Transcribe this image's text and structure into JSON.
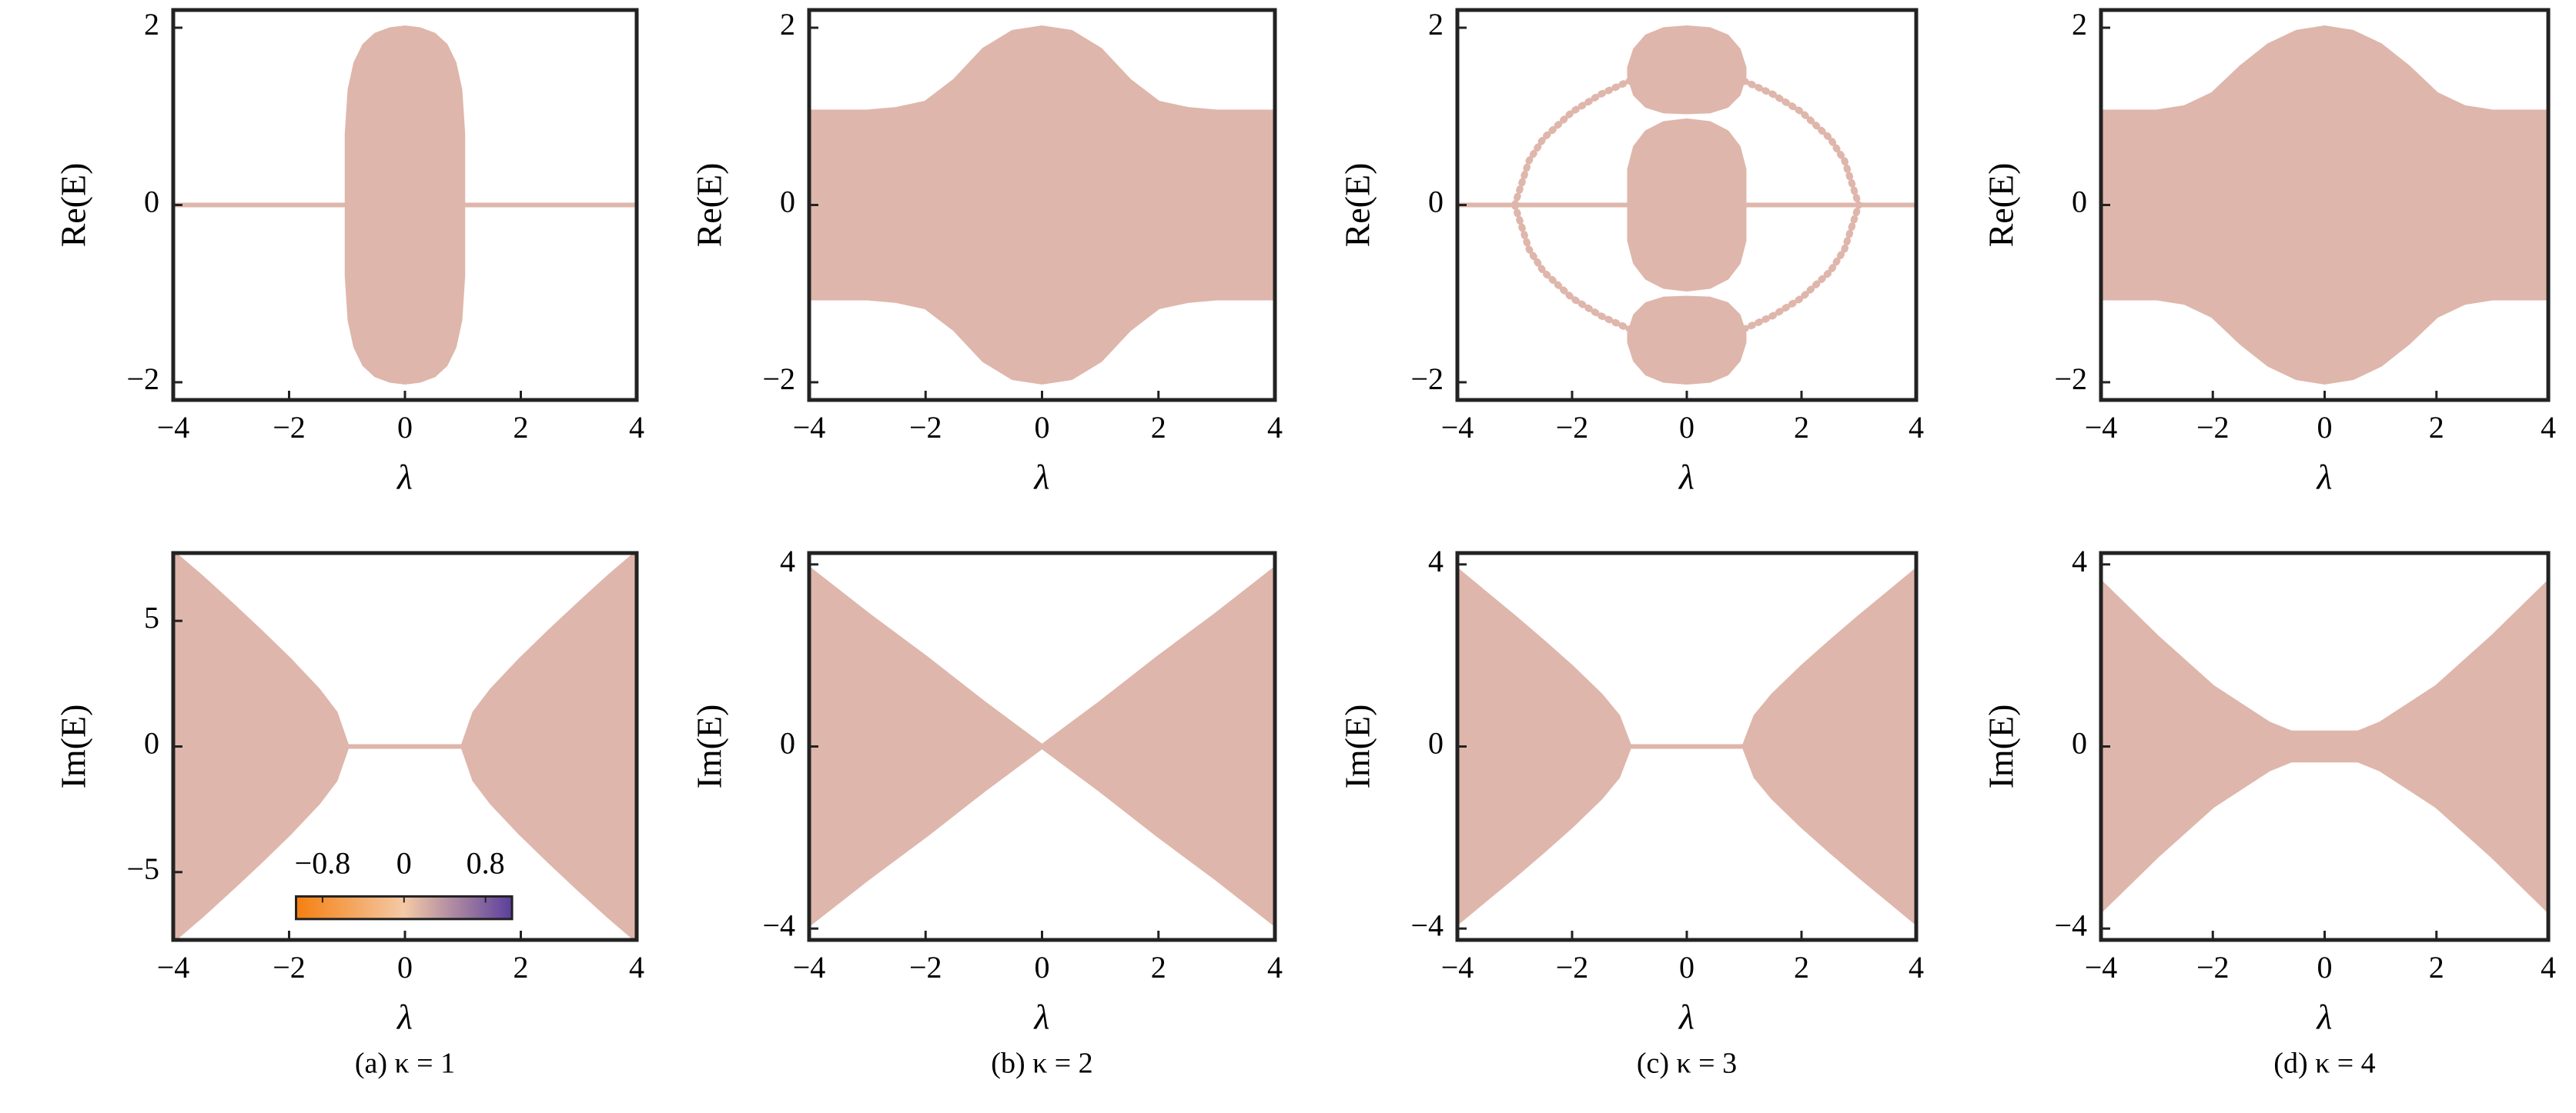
{
  "chart_data": [
    {
      "type": "band",
      "xlabel": "λ",
      "ylabel": "Re(E)",
      "color": "#dfb6ab",
      "xlim": [
        -4,
        4
      ],
      "ylim": [
        -2.2,
        2.2
      ],
      "xticks": [
        {
          "value": -4,
          "label": "−4"
        },
        {
          "value": -2,
          "label": "−2"
        },
        0,
        2,
        4
      ],
      "yticks": [
        {
          "value": -2,
          "label": "−2"
        },
        0,
        2
      ],
      "series": [
        {
          "x": [
            -4,
            4
          ],
          "upper": [
            0,
            0
          ],
          "lower": [
            0,
            0
          ]
        },
        {
          "x": [
            -1,
            -0.95,
            -0.85,
            -0.7,
            -0.5,
            -0.25,
            0,
            0.25,
            0.5,
            0.7,
            0.85,
            0.95,
            1
          ],
          "upper": [
            0.8,
            1.3,
            1.6,
            1.8,
            1.92,
            1.98,
            2,
            1.98,
            1.92,
            1.8,
            1.6,
            1.3,
            0.8
          ],
          "lower": [
            -0.8,
            -1.3,
            -1.6,
            -1.8,
            -1.92,
            -1.98,
            -2,
            -1.98,
            -1.92,
            -1.8,
            -1.6,
            -1.3,
            -0.8
          ]
        }
      ]
    },
    {
      "type": "band",
      "xlabel": "λ",
      "ylabel": "Re(E)",
      "color": "#dfb6ab",
      "xlim": [
        -4,
        4
      ],
      "ylim": [
        -2.2,
        2.2
      ],
      "xticks": [
        {
          "value": -4,
          "label": "−4"
        },
        {
          "value": -2,
          "label": "−2"
        },
        0,
        2,
        4
      ],
      "yticks": [
        {
          "value": -2,
          "label": "−2"
        },
        0,
        2
      ],
      "series": [
        {
          "x": [
            -4,
            -3,
            -2.5,
            -2,
            -1.5,
            -1,
            -0.5,
            0,
            0.5,
            1,
            1.5,
            2,
            2.5,
            3,
            4
          ],
          "upper": [
            1.05,
            1.05,
            1.08,
            1.15,
            1.4,
            1.75,
            1.95,
            2,
            1.95,
            1.75,
            1.4,
            1.15,
            1.08,
            1.05,
            1.05
          ],
          "lower": [
            -1.05,
            -1.05,
            -1.08,
            -1.15,
            -1.4,
            -1.75,
            -1.95,
            -2,
            -1.95,
            -1.75,
            -1.4,
            -1.15,
            -1.08,
            -1.05,
            -1.05
          ]
        }
      ]
    },
    {
      "type": "band",
      "xlabel": "λ",
      "ylabel": "Re(E)",
      "color": "#dfb6ab",
      "xlim": [
        -4,
        4
      ],
      "ylim": [
        -2.2,
        2.2
      ],
      "xticks": [
        {
          "value": -4,
          "label": "−4"
        },
        {
          "value": -2,
          "label": "−2"
        },
        0,
        2,
        4
      ],
      "yticks": [
        {
          "value": -2,
          "label": "−2"
        },
        0,
        2
      ],
      "series": [
        {
          "x": [
            -4,
            4
          ],
          "upper": [
            0,
            0
          ],
          "lower": [
            0,
            0
          ]
        },
        {
          "x": [
            -1,
            -0.9,
            -0.7,
            -0.4,
            0,
            0.4,
            0.7,
            0.9,
            1
          ],
          "upper": [
            0.4,
            0.65,
            0.82,
            0.92,
            0.95,
            0.92,
            0.82,
            0.65,
            0.4
          ],
          "lower": [
            -0.4,
            -0.65,
            -0.82,
            -0.92,
            -0.95,
            -0.92,
            -0.82,
            -0.65,
            -0.4
          ]
        },
        {
          "x": [
            -1,
            -0.9,
            -0.7,
            -0.4,
            0,
            0.4,
            0.7,
            0.9,
            1
          ],
          "upper": [
            1.55,
            1.75,
            1.9,
            1.98,
            2,
            1.98,
            1.9,
            1.75,
            1.55
          ],
          "lower": [
            1.45,
            1.25,
            1.12,
            1.06,
            1.05,
            1.06,
            1.12,
            1.25,
            1.45
          ]
        },
        {
          "x": [
            -1,
            -0.9,
            -0.7,
            -0.4,
            0,
            0.4,
            0.7,
            0.9,
            1
          ],
          "upper": [
            -1.45,
            -1.25,
            -1.12,
            -1.06,
            -1.05,
            -1.06,
            -1.12,
            -1.25,
            -1.45
          ],
          "lower": [
            -1.55,
            -1.75,
            -1.9,
            -1.98,
            -2,
            -1.98,
            -1.9,
            -1.75,
            -1.55
          ]
        },
        {
          "x": [
            -3,
            -2.75,
            -2.5,
            -2,
            -1.5,
            -1
          ],
          "filled": false,
          "upper": [
            0,
            0.5,
            0.75,
            1.05,
            1.25,
            1.4
          ],
          "lower": [
            0,
            -0.5,
            -0.75,
            -1.05,
            -1.25,
            -1.4
          ]
        },
        {
          "x": [
            1,
            1.5,
            2,
            2.5,
            2.75,
            3
          ],
          "filled": false,
          "upper": [
            1.4,
            1.25,
            1.05,
            0.75,
            0.5,
            0
          ],
          "lower": [
            -1.4,
            -1.25,
            -1.05,
            -0.75,
            -0.5,
            0
          ]
        }
      ]
    },
    {
      "type": "band",
      "xlabel": "λ",
      "ylabel": "Re(E)",
      "color": "#dfb6ab",
      "xlim": [
        -4,
        4
      ],
      "ylim": [
        -2.2,
        2.2
      ],
      "xticks": [
        {
          "value": -4,
          "label": "−4"
        },
        {
          "value": -2,
          "label": "−2"
        },
        0,
        2,
        4
      ],
      "yticks": [
        {
          "value": -2,
          "label": "−2"
        },
        0,
        2
      ],
      "series": [
        {
          "x": [
            -4,
            -3,
            -2.5,
            -2,
            -1.5,
            -1,
            -0.5,
            0,
            0.5,
            1,
            1.5,
            2,
            2.5,
            3,
            4
          ],
          "upper": [
            1.05,
            1.05,
            1.1,
            1.25,
            1.55,
            1.8,
            1.95,
            2,
            1.95,
            1.8,
            1.55,
            1.25,
            1.1,
            1.05,
            1.05
          ],
          "lower": [
            -1.05,
            -1.05,
            -1.1,
            -1.25,
            -1.55,
            -1.8,
            -1.95,
            -2,
            -1.95,
            -1.8,
            -1.55,
            -1.25,
            -1.1,
            -1.05,
            -1.05
          ]
        }
      ]
    },
    {
      "type": "band",
      "xlabel": "λ",
      "ylabel": "Im(E)",
      "color": "#dfb6ab",
      "caption": "(a) κ = 1",
      "xlim": [
        -4,
        4
      ],
      "ylim": [
        -7.7,
        7.7
      ],
      "xticks": [
        {
          "value": -4,
          "label": "−4"
        },
        {
          "value": -2,
          "label": "−2"
        },
        0,
        2,
        4
      ],
      "yticks": [
        {
          "value": -5,
          "label": "−5"
        },
        0,
        5
      ],
      "colorbar": {
        "colors": [
          "#f57f10",
          "#f4c9a6",
          "#5b3f9c"
        ],
        "clim": [
          -1.06,
          1.06
        ],
        "ticks": [
          {
            "value": -0.8,
            "label": "−0.8"
          },
          0,
          0.8
        ]
      },
      "series": [
        {
          "x": [
            -4,
            -3.5,
            -3,
            -2.5,
            -2,
            -1.5,
            -1.2,
            -1
          ],
          "upper": [
            7.7,
            6.71,
            5.66,
            4.58,
            3.46,
            2.24,
            1.33,
            0
          ],
          "lower": [
            -7.7,
            -6.71,
            -5.66,
            -4.58,
            -3.46,
            -2.24,
            -1.33,
            0
          ]
        },
        {
          "x": [
            1,
            1.2,
            1.5,
            2,
            2.5,
            3,
            3.5,
            4
          ],
          "upper": [
            0,
            1.33,
            2.24,
            3.46,
            4.58,
            5.66,
            6.71,
            7.7
          ],
          "lower": [
            0,
            -1.33,
            -2.24,
            -3.46,
            -4.58,
            -5.66,
            -6.71,
            -7.7
          ]
        },
        {
          "x": [
            -1,
            1
          ],
          "upper": [
            0,
            0
          ],
          "lower": [
            0,
            0
          ]
        }
      ]
    },
    {
      "type": "band",
      "xlabel": "λ",
      "ylabel": "Im(E)",
      "color": "#dfb6ab",
      "caption": "(b) κ = 2",
      "xlim": [
        -4,
        4
      ],
      "ylim": [
        -4.25,
        4.25
      ],
      "xticks": [
        {
          "value": -4,
          "label": "−4"
        },
        {
          "value": -2,
          "label": "−2"
        },
        0,
        2,
        4
      ],
      "yticks": [
        {
          "value": -4,
          "label": "−4"
        },
        0,
        4
      ],
      "series": [
        {
          "x": [
            -4,
            -3,
            -2,
            -1,
            0
          ],
          "upper": [
            3.9,
            2.9,
            1.95,
            0.95,
            0
          ],
          "lower": [
            -3.9,
            -2.9,
            -1.95,
            -0.95,
            0
          ]
        },
        {
          "x": [
            0,
            1,
            2,
            3,
            4
          ],
          "upper": [
            0,
            0.95,
            1.95,
            2.9,
            3.9
          ],
          "lower": [
            0,
            -0.95,
            -1.95,
            -2.9,
            -3.9
          ]
        }
      ]
    },
    {
      "type": "band",
      "xlabel": "λ",
      "ylabel": "Im(E)",
      "color": "#dfb6ab",
      "caption": "(c) κ = 3",
      "xlim": [
        -4,
        4
      ],
      "ylim": [
        -4.25,
        4.25
      ],
      "xticks": [
        {
          "value": -4,
          "label": "−4"
        },
        {
          "value": -2,
          "label": "−2"
        },
        0,
        2,
        4
      ],
      "yticks": [
        {
          "value": -4,
          "label": "−4"
        },
        0,
        4
      ],
      "series": [
        {
          "x": [
            -4,
            -3.5,
            -3,
            -2.5,
            -2,
            -1.5,
            -1.2,
            -1
          ],
          "upper": [
            3.87,
            3.35,
            2.83,
            2.29,
            1.73,
            1.12,
            0.66,
            0
          ],
          "lower": [
            -3.87,
            -3.35,
            -2.83,
            -2.29,
            -1.73,
            -1.12,
            -0.66,
            0
          ]
        },
        {
          "x": [
            1,
            1.2,
            1.5,
            2,
            2.5,
            3,
            3.5,
            4
          ],
          "upper": [
            0,
            0.66,
            1.12,
            1.73,
            2.29,
            2.83,
            3.35,
            3.87
          ],
          "lower": [
            0,
            -0.66,
            -1.12,
            -1.73,
            -2.29,
            -2.83,
            -3.35,
            -3.87
          ]
        },
        {
          "x": [
            -1,
            1
          ],
          "upper": [
            0,
            0
          ],
          "lower": [
            0,
            0
          ]
        }
      ]
    },
    {
      "type": "band",
      "xlabel": "λ",
      "ylabel": "Im(E)",
      "color": "#dfb6ab",
      "caption": "(d) κ = 4",
      "xlim": [
        -4,
        4
      ],
      "ylim": [
        -4.25,
        4.25
      ],
      "xticks": [
        {
          "value": -4,
          "label": "−4"
        },
        {
          "value": -2,
          "label": "−2"
        },
        0,
        2,
        4
      ],
      "yticks": [
        {
          "value": -4,
          "label": "−4"
        },
        0,
        4
      ],
      "series": [
        {
          "x": [
            -4,
            -3,
            -2,
            -1,
            0
          ],
          "upper": [
            3.6,
            2.4,
            1.3,
            0.5,
            0
          ],
          "lower": [
            -3.6,
            -2.4,
            -1.3,
            -0.5,
            0
          ]
        },
        {
          "x": [
            0,
            1,
            2,
            3,
            4
          ],
          "upper": [
            0,
            0.5,
            1.3,
            2.4,
            3.6
          ],
          "lower": [
            0,
            -0.5,
            -1.3,
            -2.4,
            -3.6
          ]
        },
        {
          "x": [
            -4,
            4
          ],
          "upper": [
            0.3,
            0.3
          ],
          "lower": [
            -0.3,
            -0.3
          ]
        }
      ]
    }
  ]
}
